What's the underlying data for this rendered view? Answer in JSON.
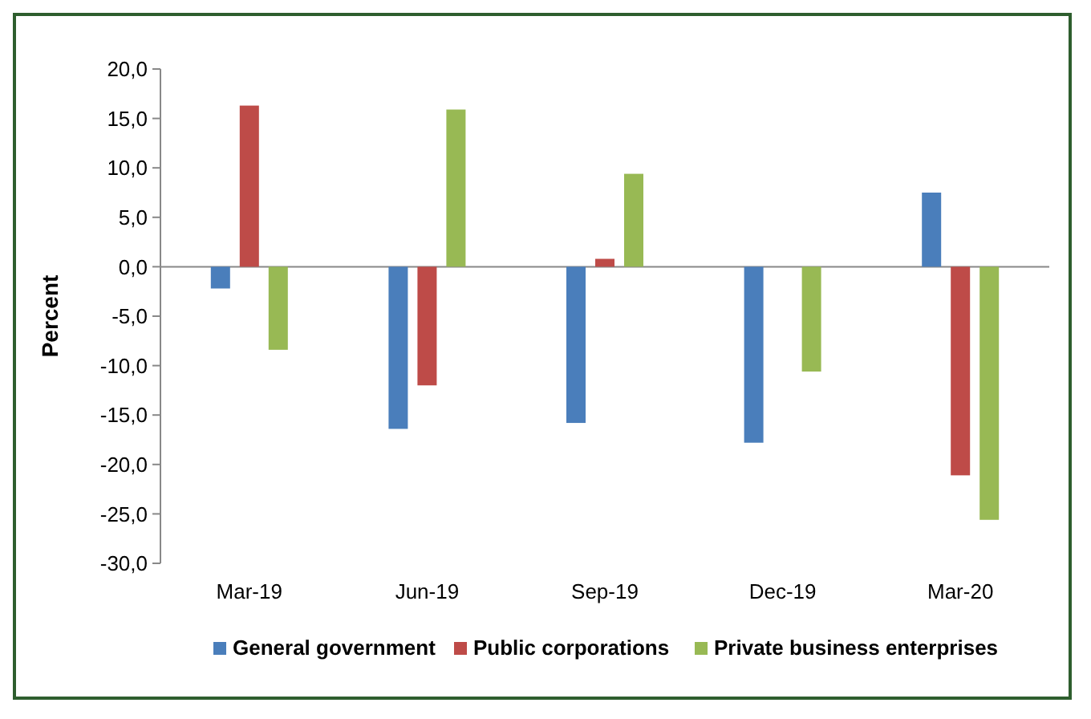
{
  "chart_data": {
    "type": "bar",
    "ylabel": "Percent",
    "categories": [
      "Mar-19",
      "Jun-19",
      "Sep-19",
      "Dec-19",
      "Mar-20"
    ],
    "series": [
      {
        "name": "General government",
        "color": "#4a7ebb",
        "values": [
          -2.2,
          -16.4,
          -15.8,
          -17.8,
          7.5
        ]
      },
      {
        "name": "Public corporations",
        "color": "#be4b48",
        "values": [
          16.3,
          -12.0,
          0.8,
          null,
          -21.1
        ]
      },
      {
        "name": "Private business enterprises",
        "color": "#98b954",
        "values": [
          -8.4,
          15.9,
          9.4,
          -10.6,
          -25.6
        ]
      }
    ],
    "ylim": [
      -30,
      20
    ],
    "yticks": [
      {
        "value": 20,
        "label": "20,0"
      },
      {
        "value": 15,
        "label": "15,0"
      },
      {
        "value": 10,
        "label": "10,0"
      },
      {
        "value": 5,
        "label": "5,0"
      },
      {
        "value": 0,
        "label": "0,0"
      },
      {
        "value": -5,
        "label": "-5,0"
      },
      {
        "value": -10,
        "label": "-10,0"
      },
      {
        "value": -15,
        "label": "-15,0"
      },
      {
        "value": -20,
        "label": "-20,0"
      },
      {
        "value": -25,
        "label": "-25,0"
      },
      {
        "value": -30,
        "label": "-30,0"
      }
    ],
    "legend": "bottom"
  }
}
